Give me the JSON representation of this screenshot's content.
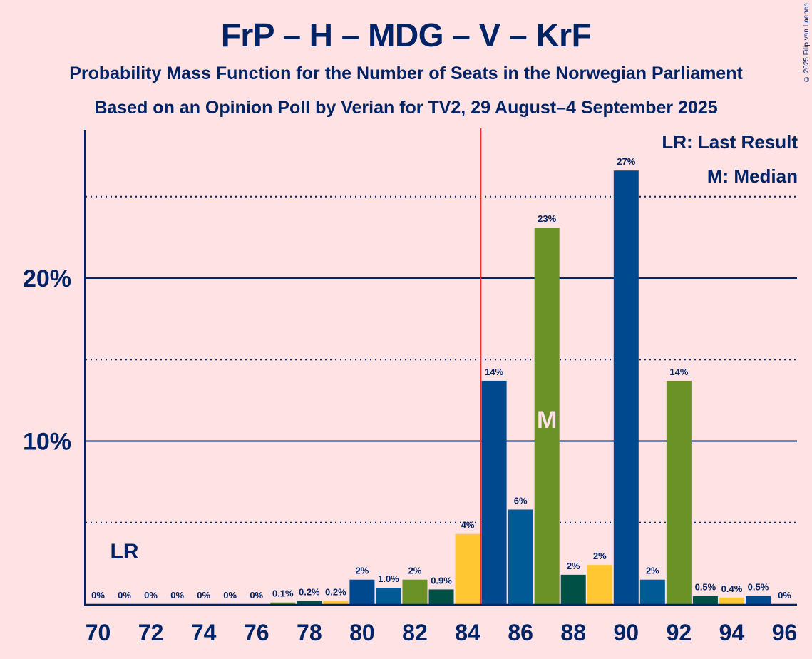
{
  "title": "FrP – H – MDG – V – KrF",
  "subtitle1": "Probability Mass Function for the Number of Seats in the Norwegian Parliament",
  "subtitle2": "Based on an Opinion Poll by Verian for TV2, 29 August–4 September 2025",
  "copyright": "© 2025 Filip van Laenen",
  "legend": {
    "last_result": "LR: Last Result",
    "median": "M: Median"
  },
  "colors": {
    "background": "#FFE2E4",
    "text": "#002366",
    "majority_line": "#E8302F",
    "median_label": "#FFE2E4"
  },
  "chart_data": {
    "type": "bar",
    "title": "FrP – H – MDG – V – KrF",
    "xlabel": "",
    "ylabel": "",
    "x": [
      70,
      71,
      72,
      73,
      74,
      75,
      76,
      77,
      78,
      79,
      80,
      81,
      82,
      83,
      84,
      85,
      86,
      87,
      88,
      89,
      90,
      91,
      92,
      93,
      94,
      95,
      96
    ],
    "values": [
      0,
      0,
      0,
      0,
      0,
      0,
      0,
      0.1,
      0.2,
      0.2,
      1.5,
      1.0,
      1.5,
      0.9,
      4.3,
      13.7,
      5.8,
      23.1,
      1.8,
      2.4,
      26.6,
      1.5,
      13.7,
      0.5,
      0.4,
      0.5,
      0
    ],
    "labels": [
      "0%",
      "0%",
      "0%",
      "0%",
      "0%",
      "0%",
      "0%",
      "0.1%",
      "0.2%",
      "0.2%",
      "2%",
      "1.0%",
      "2%",
      "0.9%",
      "4%",
      "14%",
      "6%",
      "23%",
      "2%",
      "2%",
      "27%",
      "2%",
      "14%",
      "0.5%",
      "0.4%",
      "0.5%",
      "0%"
    ],
    "bar_colors": [
      "#00498F",
      "#005A96",
      "#6A9226",
      "#005045",
      "#FFC832",
      "#00498F",
      "#005A96",
      "#6A9226",
      "#005045",
      "#FFC832",
      "#00498F",
      "#005A96",
      "#6A9226",
      "#005045",
      "#FFC832",
      "#00498F",
      "#005A96",
      "#6A9226",
      "#005045",
      "#FFC832",
      "#00498F",
      "#005A96",
      "#6A9226",
      "#005045",
      "#FFC832",
      "#00498F",
      "#005A96"
    ],
    "x_tick_labels": [
      "70",
      "72",
      "74",
      "76",
      "78",
      "80",
      "82",
      "84",
      "86",
      "88",
      "90",
      "92",
      "94",
      "96"
    ],
    "y_tick_labels": [
      "10%",
      "20%"
    ],
    "y_ticks_major": [
      10,
      20
    ],
    "y_ticks_minor": [
      5,
      15,
      25
    ],
    "ylim": [
      0,
      29
    ],
    "grid": true,
    "majority_line_after_seat": 84.5,
    "last_result_seat": 71,
    "last_result_label": "LR",
    "median_seat": 87,
    "median_label": "M",
    "legend_placement": "top-right"
  }
}
